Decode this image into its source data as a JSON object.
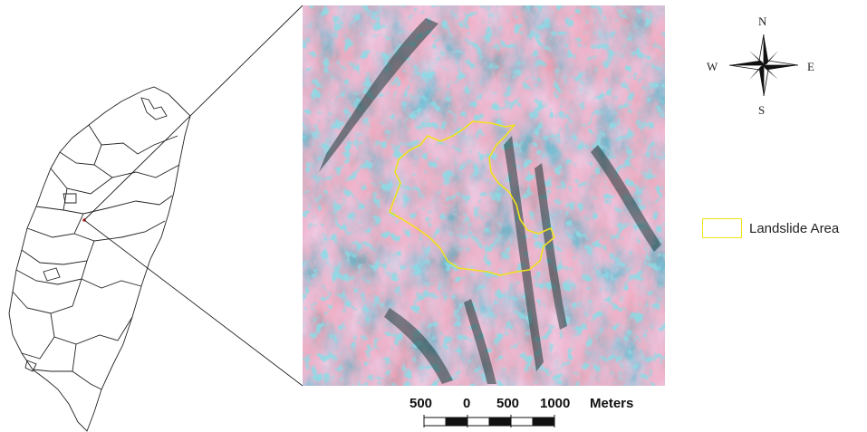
{
  "compass": {
    "north": "N",
    "south": "S",
    "east": "E",
    "west": "W",
    "icon": "north-arrow-compass-rose"
  },
  "legend": {
    "label": "Landslide Area",
    "color": "#f2e21c"
  },
  "scale_bar": {
    "ticks": [
      "500",
      "0",
      "500",
      "1000"
    ],
    "unit": "Meters"
  },
  "colors": {
    "imagery_red": "#c97a86",
    "imagery_cyan": "#3fb3c8",
    "imagery_dark": "#2e4a4a",
    "landslide_outline": "#f2e21c"
  }
}
